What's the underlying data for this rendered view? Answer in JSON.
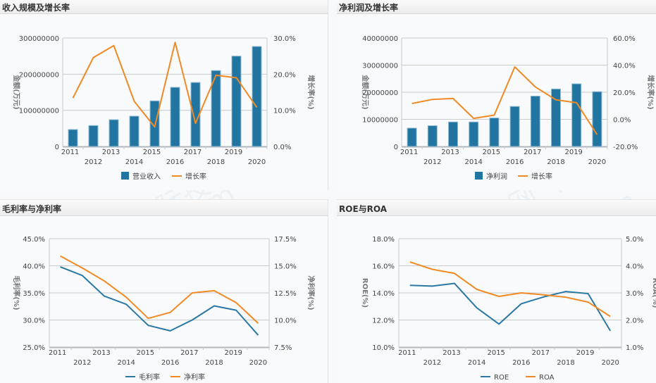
{
  "watermark": {
    "line1": "资产信息网 千际投行",
    "line2": "zichanxinxi.com"
  },
  "colors": {
    "bar": "#2275a0",
    "bar_stroke": "#8fbad3",
    "line_blue": "#2a78a3",
    "line_orange": "#f08a24",
    "grid": "#c9cbcd",
    "axis": "#c9cbcd"
  },
  "chart_data": [
    {
      "id": "revenue",
      "type": "bar+line",
      "title": "收入规模及增长率",
      "categories": [
        "2011",
        "2012",
        "2013",
        "2014",
        "2015",
        "2016",
        "2017",
        "2018",
        "2019",
        "2020"
      ],
      "ylabel_left": "金额(万元)",
      "ylabel_right": "增长率(%)",
      "left_axis": {
        "min": 0,
        "max": 300000000,
        "ticks": [
          "0",
          "100000000",
          "200000000",
          "300000000"
        ]
      },
      "right_axis": {
        "min": 0,
        "max": 30,
        "ticks": [
          "0.0%",
          "10.0%",
          "20.0%",
          "30.0%"
        ]
      },
      "series": [
        {
          "name": "营业收入",
          "type": "bar",
          "axis": "left",
          "values": [
            46800000,
            57800000,
            74000000,
            83800000,
            126000000,
            163600000,
            177000000,
            210000000,
            250000000,
            276600000
          ]
        },
        {
          "name": "增长率",
          "type": "line",
          "axis": "right",
          "color": "orange",
          "values": [
            13.4,
            24.6,
            27.9,
            12.5,
            5.4,
            28.8,
            6.4,
            19.7,
            19.0,
            10.8
          ]
        }
      ],
      "legend": "bottom"
    },
    {
      "id": "net-profit",
      "type": "bar+line",
      "title": "净利润及增长率",
      "categories": [
        "2011",
        "2012",
        "2013",
        "2014",
        "2015",
        "2016",
        "2017",
        "2018",
        "2019",
        "2020"
      ],
      "ylabel_left": "金额(万元)",
      "ylabel_right": "增长率(%)",
      "left_axis": {
        "min": 0,
        "max": 40000000,
        "ticks": [
          "0",
          "10000000",
          "20000000",
          "30000000",
          "40000000"
        ]
      },
      "right_axis": {
        "min": -20,
        "max": 60,
        "ticks": [
          "-20.0%",
          "0.0%",
          "20.0%",
          "40.0%",
          "60.0%"
        ]
      },
      "series": [
        {
          "name": "净利润",
          "type": "bar",
          "axis": "left",
          "values": [
            6770000,
            7650000,
            9030000,
            9030000,
            10500000,
            14760000,
            18580000,
            21200000,
            23100000,
            20200000
          ]
        },
        {
          "name": "增长率",
          "type": "line",
          "axis": "right",
          "color": "orange",
          "values": [
            11.7,
            14.7,
            15.4,
            0.7,
            3.1,
            38.7,
            23.9,
            14.4,
            12.3,
            -11.3
          ]
        }
      ],
      "legend": "bottom"
    },
    {
      "id": "margins",
      "type": "line",
      "title": "毛利率与净利率",
      "categories": [
        "2011",
        "2012",
        "2013",
        "2014",
        "2015",
        "2016",
        "2017",
        "2018",
        "2019",
        "2020"
      ],
      "ylabel_left": "毛利率(%)",
      "ylabel_right": "净利率(%)",
      "left_axis": {
        "min": 25,
        "max": 45,
        "ticks": [
          "25.0%",
          "30.0%",
          "35.0%",
          "40.0%",
          "45.0%"
        ]
      },
      "right_axis": {
        "min": 7.5,
        "max": 17.5,
        "ticks": [
          "7.5%",
          "10.0%",
          "12.5%",
          "15.0%",
          "17.5%"
        ]
      },
      "series": [
        {
          "name": "毛利率",
          "type": "line",
          "axis": "left",
          "color": "blue",
          "values": [
            39.8,
            38.2,
            34.4,
            32.9,
            29.0,
            28.0,
            30.0,
            32.6,
            31.8,
            27.2
          ]
        },
        {
          "name": "净利率",
          "type": "line",
          "axis": "right",
          "color": "orange",
          "values": [
            15.9,
            14.8,
            13.6,
            12.1,
            10.15,
            10.7,
            12.5,
            12.7,
            11.6,
            9.7
          ]
        }
      ],
      "legend": "bottom"
    },
    {
      "id": "roe-roa",
      "type": "line",
      "title": "ROE与ROA",
      "categories": [
        "2011",
        "2012",
        "2013",
        "2014",
        "2015",
        "2016",
        "2017",
        "2018",
        "2019",
        "2020"
      ],
      "ylabel_left": "ROE(%)",
      "ylabel_right": "ROA(%)",
      "left_axis": {
        "min": 10,
        "max": 18,
        "ticks": [
          "10.0%",
          "12.0%",
          "14.0%",
          "16.0%",
          "18.0%"
        ]
      },
      "right_axis": {
        "min": 1,
        "max": 5,
        "ticks": [
          "1.0%",
          "2.0%",
          "3.0%",
          "4.0%",
          "5.0%"
        ]
      },
      "series": [
        {
          "name": "ROE",
          "type": "line",
          "axis": "left",
          "color": "blue",
          "values": [
            14.56,
            14.5,
            14.7,
            12.9,
            11.7,
            13.2,
            13.7,
            14.1,
            13.95,
            11.2
          ]
        },
        {
          "name": "ROA",
          "type": "line",
          "axis": "right",
          "color": "orange",
          "values": [
            4.14,
            3.87,
            3.72,
            3.13,
            2.87,
            3.0,
            2.93,
            2.84,
            2.66,
            2.13
          ]
        }
      ],
      "legend": "bottom"
    }
  ]
}
